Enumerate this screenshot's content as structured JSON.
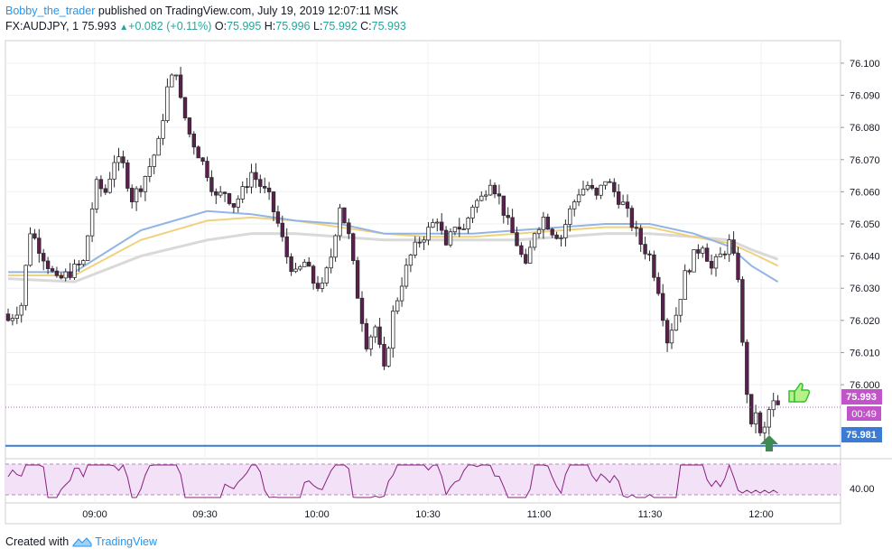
{
  "header": {
    "author": "Bobby_the_trader",
    "published_text": "published on TradingView.com, July 19, 2019 12:07:11 MSK",
    "symbol": "FX:AUDJPY, 1",
    "last": "75.993",
    "change": "+0.082 (+0.11%)",
    "o_label": "O:",
    "o_value": "75.995",
    "h_label": "H:",
    "h_value": "75.996",
    "l_label": "L:",
    "l_value": "75.992",
    "c_label": "C:",
    "c_value": "75.993"
  },
  "footer": {
    "created_with": "Created with",
    "brand": "TradingView"
  },
  "badges": {
    "price": "75.993",
    "countdown": "00:49",
    "level": "75.981",
    "rsi": "40.00"
  },
  "colors": {
    "up": "#26a69a",
    "bull_body": "#ffffff",
    "bear_body": "#5d1f4f",
    "wick": "#2b2b2b",
    "ma_blue": "#92b5e6",
    "ma_yellow": "#f0d17c",
    "ma_grey": "#d9d9d9",
    "level_line": "#3a7bd5",
    "price_badge": "#c254c9",
    "rsi_line": "#8a1f7f",
    "rsi_band": "#f2e1f7"
  },
  "icons": [
    "thumbs-up-icon",
    "up-arrow-icon",
    "tradingview-logo-icon"
  ],
  "chart_data": {
    "type": "candlestick",
    "symbol": "FX:AUDJPY",
    "timeframe": "1",
    "y_ticks": [
      "76.100",
      "76.090",
      "76.080",
      "76.070",
      "76.060",
      "76.050",
      "76.040",
      "76.030",
      "76.020",
      "76.010",
      "76.000"
    ],
    "x_ticks": [
      "09:00",
      "09:30",
      "10:00",
      "10:30",
      "11:00",
      "11:30",
      "12:00"
    ],
    "ylim": [
      75.977,
      76.107
    ],
    "horizontal_level": 75.981,
    "current_price": 75.993,
    "rsi_label": "40.00",
    "close_path": [
      [
        0,
        76.02
      ],
      [
        3,
        76.025
      ],
      [
        5,
        76.048
      ],
      [
        8,
        76.04
      ],
      [
        11,
        76.032
      ],
      [
        14,
        76.035
      ],
      [
        17,
        76.038
      ],
      [
        19,
        76.055
      ],
      [
        20,
        76.062
      ],
      [
        22,
        76.06
      ],
      [
        24,
        76.07
      ],
      [
        26,
        76.068
      ],
      [
        28,
        76.058
      ],
      [
        30,
        76.062
      ],
      [
        32,
        76.068
      ],
      [
        34,
        76.075
      ],
      [
        36,
        76.092
      ],
      [
        38,
        76.098
      ],
      [
        39,
        76.088
      ],
      [
        41,
        76.078
      ],
      [
        43,
        76.072
      ],
      [
        45,
        76.066
      ],
      [
        47,
        76.058
      ],
      [
        49,
        76.06
      ],
      [
        51,
        76.056
      ],
      [
        53,
        76.06
      ],
      [
        55,
        76.066
      ],
      [
        57,
        76.062
      ],
      [
        59,
        76.058
      ],
      [
        61,
        76.05
      ],
      [
        63,
        76.04
      ],
      [
        65,
        76.034
      ],
      [
        67,
        76.038
      ],
      [
        69,
        76.032
      ],
      [
        71,
        76.03
      ],
      [
        73,
        76.04
      ],
      [
        75,
        76.056
      ],
      [
        77,
        76.046
      ],
      [
        79,
        76.028
      ],
      [
        81,
        76.013
      ],
      [
        83,
        76.018
      ],
      [
        85,
        76.004
      ],
      [
        87,
        76.022
      ],
      [
        89,
        76.032
      ],
      [
        91,
        76.04
      ],
      [
        93,
        76.045
      ],
      [
        95,
        76.048
      ],
      [
        97,
        76.052
      ],
      [
        99,
        76.042
      ],
      [
        101,
        76.05
      ],
      [
        103,
        76.048
      ],
      [
        105,
        76.056
      ],
      [
        107,
        76.058
      ],
      [
        109,
        76.064
      ],
      [
        111,
        76.058
      ],
      [
        113,
        76.05
      ],
      [
        115,
        76.044
      ],
      [
        117,
        76.036
      ],
      [
        119,
        76.048
      ],
      [
        121,
        76.052
      ],
      [
        123,
        76.048
      ],
      [
        125,
        76.046
      ],
      [
        127,
        76.054
      ],
      [
        129,
        76.06
      ],
      [
        131,
        76.062
      ],
      [
        133,
        76.058
      ],
      [
        135,
        76.064
      ],
      [
        137,
        76.06
      ],
      [
        139,
        76.056
      ],
      [
        141,
        76.05
      ],
      [
        143,
        76.044
      ],
      [
        145,
        76.04
      ],
      [
        147,
        76.03
      ],
      [
        149,
        76.014
      ],
      [
        151,
        76.022
      ],
      [
        153,
        76.034
      ],
      [
        155,
        76.04
      ],
      [
        157,
        76.044
      ],
      [
        159,
        76.036
      ],
      [
        161,
        76.04
      ],
      [
        163,
        76.044
      ],
      [
        165,
        76.034
      ],
      [
        166,
        76.012
      ],
      [
        167,
        75.998
      ],
      [
        168,
        75.986
      ],
      [
        169,
        75.992
      ],
      [
        170,
        75.984
      ],
      [
        171,
        75.986
      ],
      [
        172,
        75.992
      ],
      [
        173,
        75.994
      ],
      [
        174,
        75.993
      ]
    ],
    "ma_series": [
      {
        "values": [
          [
            0,
            76.035
          ],
          [
            15,
            76.035
          ],
          [
            30,
            76.048
          ],
          [
            45,
            76.054
          ],
          [
            55,
            76.053
          ],
          [
            65,
            76.051
          ],
          [
            75,
            76.05
          ],
          [
            85,
            76.047
          ],
          [
            95,
            76.047
          ],
          [
            105,
            76.047
          ],
          [
            115,
            76.048
          ],
          [
            125,
            76.049
          ],
          [
            135,
            76.05
          ],
          [
            145,
            76.05
          ],
          [
            155,
            76.047
          ],
          [
            163,
            76.043
          ],
          [
            168,
            76.037
          ],
          [
            174,
            76.032
          ]
        ]
      },
      {
        "values": [
          [
            0,
            76.034
          ],
          [
            15,
            76.034
          ],
          [
            30,
            76.045
          ],
          [
            45,
            76.051
          ],
          [
            55,
            76.052
          ],
          [
            65,
            76.051
          ],
          [
            75,
            76.049
          ],
          [
            85,
            76.047
          ],
          [
            95,
            76.046
          ],
          [
            105,
            76.046
          ],
          [
            115,
            76.047
          ],
          [
            125,
            76.048
          ],
          [
            135,
            76.049
          ],
          [
            145,
            76.049
          ],
          [
            155,
            76.046
          ],
          [
            163,
            76.044
          ],
          [
            168,
            76.041
          ],
          [
            174,
            76.037
          ]
        ]
      },
      {
        "values": [
          [
            0,
            76.033
          ],
          [
            15,
            76.032
          ],
          [
            30,
            76.04
          ],
          [
            45,
            76.045
          ],
          [
            55,
            76.047
          ],
          [
            65,
            76.047
          ],
          [
            75,
            76.046
          ],
          [
            85,
            76.045
          ],
          [
            95,
            76.045
          ],
          [
            105,
            76.045
          ],
          [
            115,
            76.045
          ],
          [
            125,
            76.046
          ],
          [
            135,
            76.047
          ],
          [
            145,
            76.047
          ],
          [
            155,
            76.046
          ],
          [
            163,
            76.045
          ],
          [
            168,
            76.042
          ],
          [
            174,
            76.039
          ]
        ]
      }
    ]
  }
}
